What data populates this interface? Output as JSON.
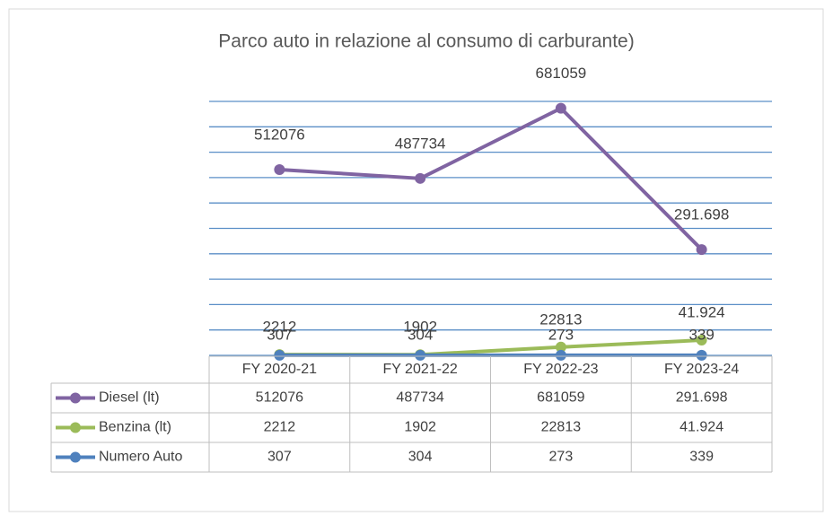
{
  "chart_data": {
    "type": "line",
    "title": "Parco auto in relazione al consumo di carburante)",
    "categories": [
      "FY 2020-21",
      "FY 2021-22",
      "FY 2022-23",
      "FY 2023-24"
    ],
    "series": [
      {
        "name": "Diesel (lt)",
        "color": "#8064a2",
        "values": [
          512076,
          487734,
          681059,
          291698
        ],
        "value_labels": [
          "512076",
          "487734",
          "681059",
          "291.698"
        ]
      },
      {
        "name": "Benzina (lt)",
        "color": "#9bbb59",
        "values": [
          2212,
          1902,
          22813,
          41924
        ],
        "value_labels": [
          "2212",
          "1902",
          "22813",
          "41.924"
        ]
      },
      {
        "name": "Numero Auto",
        "color": "#4f81bd",
        "values": [
          307,
          304,
          273,
          339
        ],
        "value_labels": [
          "307",
          "304",
          "273",
          "339"
        ]
      }
    ],
    "ylim": [
      0,
      700000
    ],
    "yticks": [
      0,
      70000,
      140000,
      210000,
      280000,
      350000,
      420000,
      490000,
      560000,
      630000,
      700000
    ],
    "grid": true,
    "grid_color": "#5b8fc7",
    "data_table": true
  }
}
